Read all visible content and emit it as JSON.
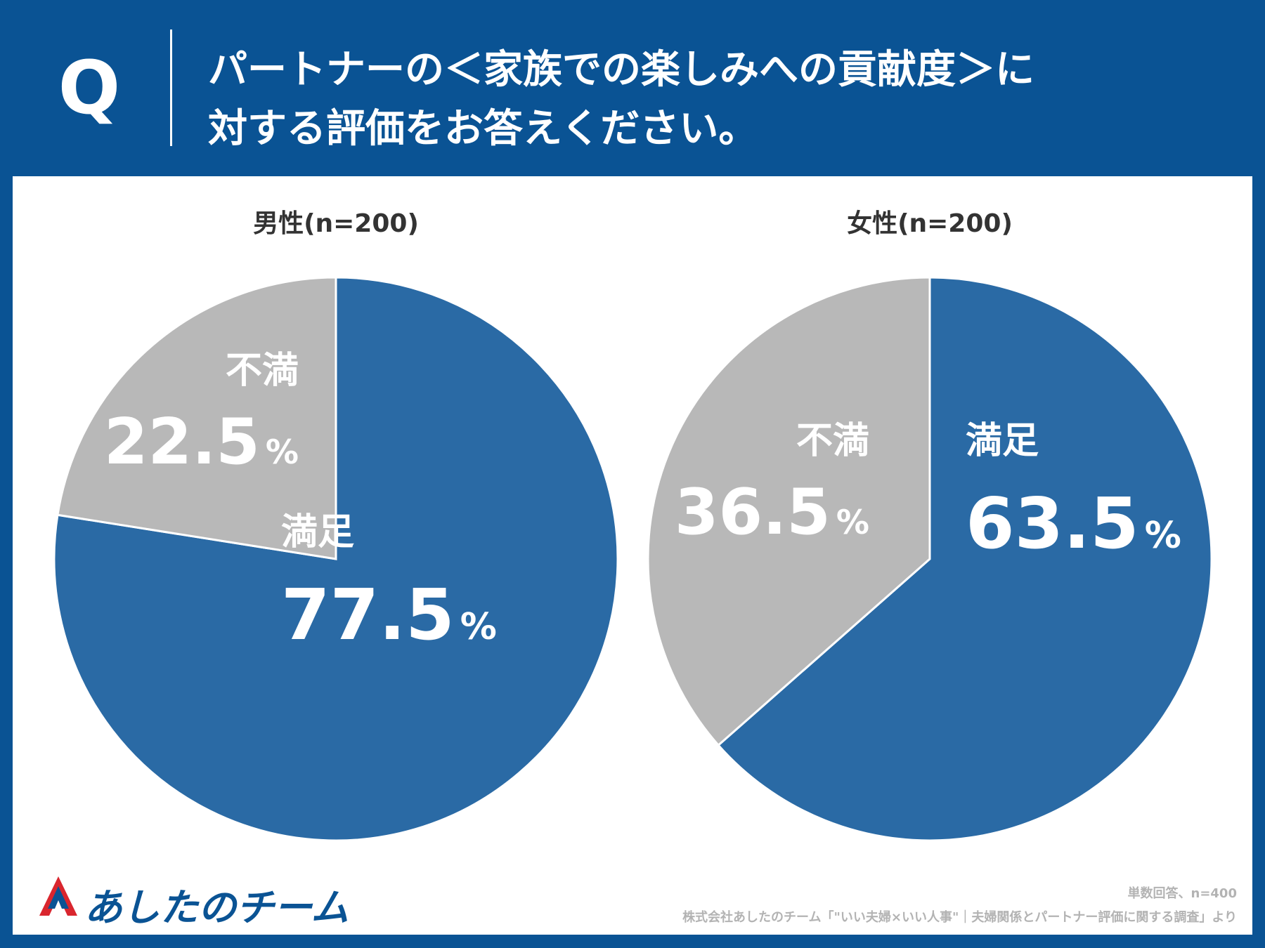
{
  "header": {
    "q_label": "Q",
    "title_line1": "パートナーの＜家族での楽しみへの貢献度＞に",
    "title_line2": "対する評価をお答えください。"
  },
  "colors": {
    "satisfied": "#2a6aa5",
    "dissatisfied": "#b8b8b8",
    "frame": "#0a5394"
  },
  "chart_data": [
    {
      "type": "pie",
      "title": "男性(n=200)",
      "slices": [
        {
          "label": "満足",
          "value": 77.5,
          "display": "77.5",
          "unit": "%"
        },
        {
          "label": "不満",
          "value": 22.5,
          "display": "22.5",
          "unit": "%"
        }
      ]
    },
    {
      "type": "pie",
      "title": "女性(n=200)",
      "slices": [
        {
          "label": "満足",
          "value": 63.5,
          "display": "63.5",
          "unit": "%"
        },
        {
          "label": "不満",
          "value": 36.5,
          "display": "36.5",
          "unit": "%"
        }
      ]
    }
  ],
  "footer": {
    "logo_text": "あしたのチーム",
    "note_sample": "単数回答、n=400",
    "note_source": "株式会社あしたのチーム「\"いい夫婦×いい人事\"｜夫婦関係とパートナー評価に関する調査」より"
  }
}
